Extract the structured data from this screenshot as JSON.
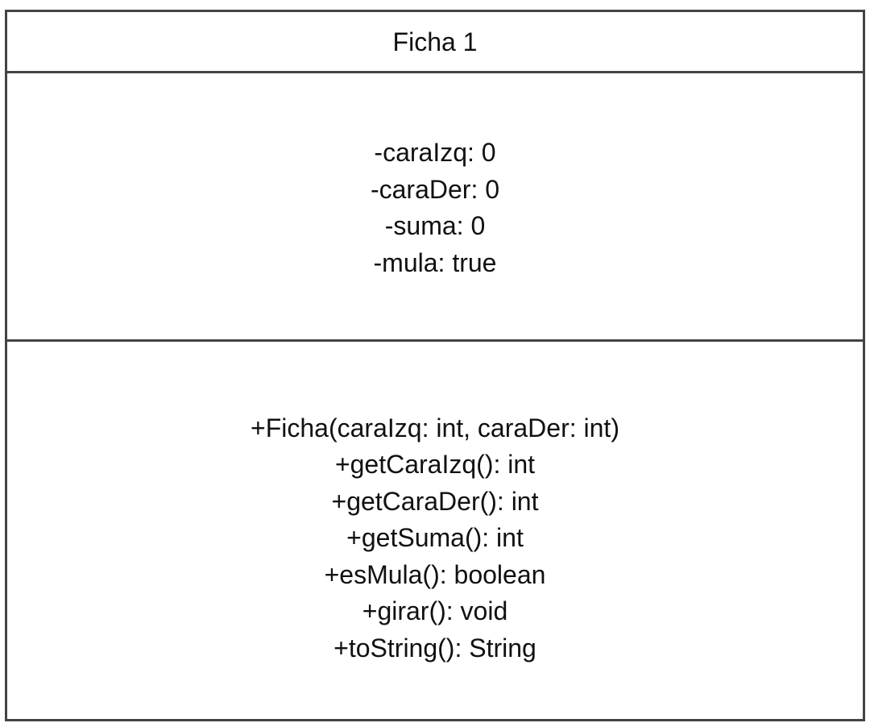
{
  "class": {
    "name": "Ficha 1",
    "attributes": [
      "-caraIzq: 0",
      "-caraDer: 0",
      "-suma: 0",
      "-mula: true"
    ],
    "methods": [
      "+Ficha(caraIzq: int, caraDer: int)",
      "+getCaraIzq(): int",
      "+getCaraDer(): int",
      "+getSuma(): int",
      "+esMula(): boolean",
      "+girar(): void",
      "+toString(): String"
    ]
  },
  "colors": {
    "border": "#444444",
    "text": "#111111",
    "background": "#ffffff"
  }
}
